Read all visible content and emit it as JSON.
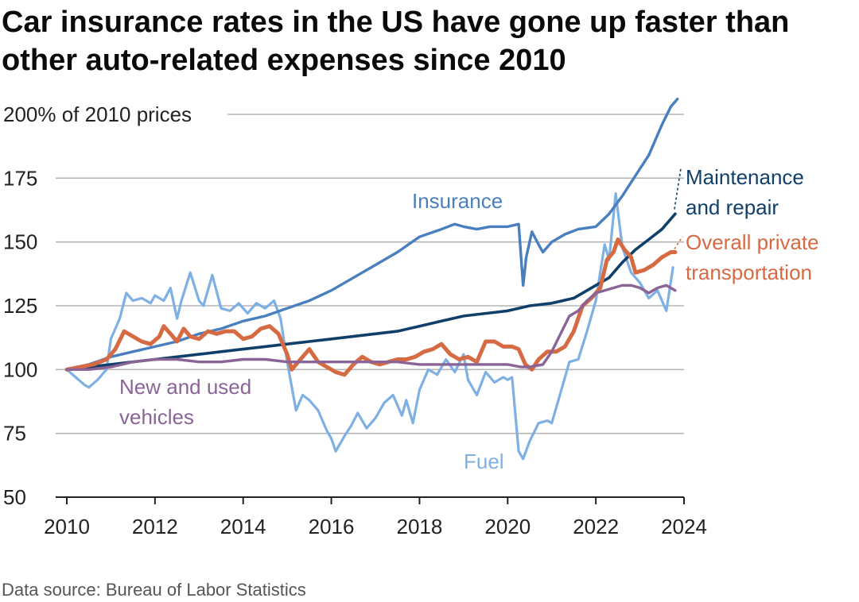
{
  "title": "Car insurance rates in the US have gone up faster than other auto-related expenses since 2010",
  "source": "Data source: Bureau of Labor Statistics",
  "chart_data": {
    "type": "line",
    "ylabel_inline": "200% of 2010 prices",
    "ylim": [
      50,
      200
    ],
    "xlim": [
      2010,
      2024
    ],
    "yticks": [
      50,
      75,
      100,
      125,
      150,
      175
    ],
    "ytick_labels": [
      "50",
      "75",
      "100",
      "125",
      "150",
      "175",
      "200% of 2010 prices"
    ],
    "xticks": [
      2010,
      2012,
      2014,
      2016,
      2018,
      2020,
      2022,
      2024
    ],
    "xtick_labels": [
      "2010",
      "2012",
      "2014",
      "2016",
      "2018",
      "2020",
      "2022",
      "2024"
    ],
    "grid": true,
    "series": [
      {
        "name": "Fuel",
        "label_lines": [
          "Fuel"
        ],
        "color": "#7eb0e4",
        "x": [
          2010.0,
          2010.2,
          2010.4,
          2010.5,
          2010.7,
          2010.9,
          2011.0,
          2011.2,
          2011.35,
          2011.5,
          2011.7,
          2011.9,
          2012.0,
          2012.2,
          2012.35,
          2012.5,
          2012.6,
          2012.8,
          2013.0,
          2013.1,
          2013.3,
          2013.5,
          2013.7,
          2013.9,
          2014.1,
          2014.3,
          2014.5,
          2014.7,
          2014.85,
          2015.0,
          2015.2,
          2015.35,
          2015.5,
          2015.7,
          2015.9,
          2016.0,
          2016.1,
          2016.3,
          2016.45,
          2016.6,
          2016.8,
          2017.0,
          2017.2,
          2017.4,
          2017.6,
          2017.7,
          2017.85,
          2018.0,
          2018.2,
          2018.4,
          2018.6,
          2018.8,
          2019.0,
          2019.1,
          2019.3,
          2019.5,
          2019.7,
          2019.9,
          2020.0,
          2020.1,
          2020.25,
          2020.35,
          2020.5,
          2020.7,
          2020.9,
          2021.0,
          2021.2,
          2021.4,
          2021.6,
          2021.8,
          2022.0,
          2022.2,
          2022.3,
          2022.45,
          2022.6,
          2022.8,
          2023.0,
          2023.2,
          2023.4,
          2023.6,
          2023.75
        ],
        "values": [
          100,
          97,
          94,
          93,
          96,
          100,
          112,
          120,
          130,
          127,
          128,
          126,
          129,
          127,
          132,
          120,
          127,
          138,
          127,
          125,
          137,
          124,
          123,
          126,
          122,
          126,
          124,
          127,
          120,
          103,
          84,
          90,
          88,
          84,
          76,
          73,
          68,
          74,
          78,
          83,
          77,
          81,
          87,
          90,
          82,
          88,
          79,
          92,
          100,
          98,
          104,
          99,
          106,
          96,
          90,
          99,
          95,
          97,
          96,
          97,
          68,
          65,
          72,
          79,
          80,
          79,
          91,
          103,
          104,
          115,
          127,
          149,
          143,
          169,
          148,
          138,
          134,
          128,
          131,
          123,
          140
        ]
      },
      {
        "name": "Insurance",
        "label_lines": [
          "Insurance"
        ],
        "color": "#4a7fbf",
        "x": [
          2010.0,
          2010.5,
          2011.0,
          2011.5,
          2012.0,
          2012.5,
          2013.0,
          2013.5,
          2014.0,
          2014.5,
          2015.0,
          2015.5,
          2016.0,
          2016.5,
          2017.0,
          2017.5,
          2018.0,
          2018.5,
          2018.8,
          2019.0,
          2019.3,
          2019.6,
          2020.0,
          2020.25,
          2020.35,
          2020.42,
          2020.55,
          2020.7,
          2020.8,
          2021.0,
          2021.3,
          2021.6,
          2022.0,
          2022.3,
          2022.6,
          2022.9,
          2023.2,
          2023.5,
          2023.7,
          2023.85
        ],
        "values": [
          100,
          102,
          105,
          107,
          109,
          111,
          114,
          116,
          119,
          121,
          124,
          127,
          131,
          136,
          141,
          146,
          152,
          155,
          157,
          156,
          155,
          156,
          156,
          157,
          133,
          144,
          154,
          149,
          146,
          150,
          153,
          155,
          156,
          161,
          168,
          176,
          184,
          196,
          203,
          206
        ]
      },
      {
        "name": "Maintenance and repair",
        "label_lines": [
          "Maintenance",
          "and repair"
        ],
        "color": "#103f6a",
        "x": [
          2010.0,
          2010.5,
          2011.0,
          2011.5,
          2012.0,
          2012.5,
          2013.0,
          2013.5,
          2014.0,
          2014.5,
          2015.0,
          2015.5,
          2016.0,
          2016.5,
          2017.0,
          2017.5,
          2018.0,
          2018.5,
          2019.0,
          2019.5,
          2020.0,
          2020.5,
          2021.0,
          2021.5,
          2022.0,
          2022.3,
          2022.6,
          2022.9,
          2023.2,
          2023.5,
          2023.8
        ],
        "values": [
          100,
          101,
          102,
          103,
          104,
          105,
          106,
          107,
          108,
          109,
          110,
          111,
          112,
          113,
          114,
          115,
          117,
          119,
          121,
          122,
          123,
          125,
          126,
          128,
          133,
          136,
          142,
          147,
          151,
          155,
          161
        ]
      },
      {
        "name": "Overall private transportation",
        "label_lines": [
          "Overall private",
          "transportation"
        ],
        "color": "#d66a43",
        "x": [
          2010.0,
          2010.3,
          2010.6,
          2010.9,
          2011.1,
          2011.3,
          2011.5,
          2011.7,
          2011.9,
          2012.1,
          2012.2,
          2012.35,
          2012.5,
          2012.65,
          2012.8,
          2013.0,
          2013.2,
          2013.4,
          2013.6,
          2013.8,
          2014.0,
          2014.2,
          2014.4,
          2014.6,
          2014.8,
          2015.0,
          2015.1,
          2015.3,
          2015.5,
          2015.7,
          2015.9,
          2016.1,
          2016.3,
          2016.5,
          2016.7,
          2016.9,
          2017.1,
          2017.3,
          2017.5,
          2017.7,
          2017.9,
          2018.1,
          2018.3,
          2018.5,
          2018.7,
          2018.9,
          2019.1,
          2019.3,
          2019.5,
          2019.7,
          2019.9,
          2020.1,
          2020.25,
          2020.4,
          2020.55,
          2020.7,
          2020.9,
          2021.1,
          2021.3,
          2021.5,
          2021.7,
          2021.9,
          2022.1,
          2022.25,
          2022.4,
          2022.5,
          2022.65,
          2022.8,
          2022.9,
          2023.1,
          2023.3,
          2023.5,
          2023.7,
          2023.8
        ],
        "values": [
          100,
          101,
          102,
          104,
          108,
          115,
          113,
          111,
          110,
          113,
          117,
          114,
          111,
          116,
          113,
          112,
          115,
          114,
          115,
          115,
          112,
          113,
          116,
          117,
          114,
          106,
          100,
          104,
          108,
          103,
          101,
          99,
          98,
          102,
          105,
          103,
          102,
          103,
          104,
          104,
          105,
          107,
          108,
          110,
          106,
          104,
          105,
          103,
          111,
          111,
          109,
          109,
          108,
          102,
          100,
          104,
          107,
          107,
          109,
          115,
          125,
          128,
          132,
          143,
          146,
          151,
          147,
          144,
          138,
          139,
          141,
          144,
          146,
          146
        ]
      },
      {
        "name": "New and used vehicles",
        "label_lines": [
          "New and used",
          "vehicles"
        ],
        "color": "#8a6497",
        "x": [
          2010.0,
          2010.5,
          2011.0,
          2011.5,
          2012.0,
          2012.5,
          2013.0,
          2013.5,
          2014.0,
          2014.5,
          2015.0,
          2015.5,
          2016.0,
          2016.5,
          2017.0,
          2017.5,
          2018.0,
          2018.5,
          2019.0,
          2019.5,
          2020.0,
          2020.3,
          2020.5,
          2020.8,
          2021.0,
          2021.2,
          2021.4,
          2021.6,
          2021.8,
          2022.0,
          2022.2,
          2022.4,
          2022.6,
          2022.8,
          2023.0,
          2023.2,
          2023.4,
          2023.6,
          2023.8
        ],
        "values": [
          100,
          100,
          101,
          103,
          104,
          104,
          103,
          103,
          104,
          104,
          103,
          103,
          103,
          103,
          103,
          103,
          102,
          102,
          102,
          102,
          102,
          101,
          101,
          102,
          107,
          114,
          121,
          123,
          127,
          130,
          131,
          132,
          133,
          133,
          132,
          130,
          132,
          133,
          131
        ]
      }
    ]
  }
}
